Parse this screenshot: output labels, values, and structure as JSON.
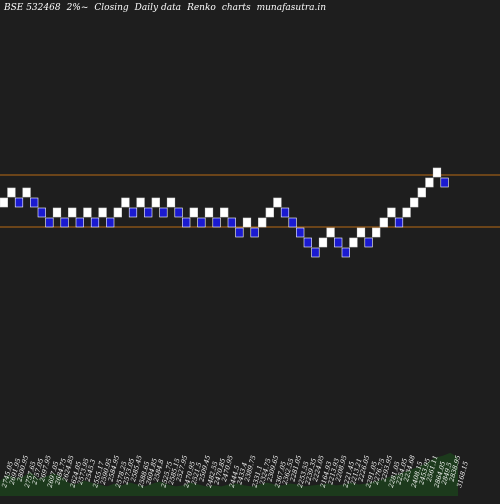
{
  "header": {
    "symbol": "BSE 532468",
    "box_size": "2%~",
    "basis": "Closing",
    "frequency": "Daily data",
    "chart_kind": "Renko",
    "word_charts": "charts",
    "site": "munafasutra.in"
  },
  "chart_data": {
    "type": "renko",
    "colors": {
      "background": "#1e1e1e",
      "up": "#ffffff",
      "down": "#1a1ad0",
      "reference_line": "#b86a14",
      "volume": "#1c3a1c"
    },
    "bricks": [
      {
        "dir": "up",
        "level": 7
      },
      {
        "dir": "up",
        "level": 8
      },
      {
        "dir": "down",
        "level": 7
      },
      {
        "dir": "up",
        "level": 8
      },
      {
        "dir": "down",
        "level": 7
      },
      {
        "dir": "down",
        "level": 6
      },
      {
        "dir": "down",
        "level": 5
      },
      {
        "dir": "up",
        "level": 6
      },
      {
        "dir": "down",
        "level": 5
      },
      {
        "dir": "up",
        "level": 6
      },
      {
        "dir": "down",
        "level": 5
      },
      {
        "dir": "up",
        "level": 6
      },
      {
        "dir": "down",
        "level": 5
      },
      {
        "dir": "up",
        "level": 6
      },
      {
        "dir": "down",
        "level": 5
      },
      {
        "dir": "up",
        "level": 6
      },
      {
        "dir": "up",
        "level": 7
      },
      {
        "dir": "down",
        "level": 6
      },
      {
        "dir": "up",
        "level": 7
      },
      {
        "dir": "down",
        "level": 6
      },
      {
        "dir": "up",
        "level": 7
      },
      {
        "dir": "down",
        "level": 6
      },
      {
        "dir": "up",
        "level": 7
      },
      {
        "dir": "down",
        "level": 6
      },
      {
        "dir": "down",
        "level": 5
      },
      {
        "dir": "up",
        "level": 6
      },
      {
        "dir": "down",
        "level": 5
      },
      {
        "dir": "up",
        "level": 6
      },
      {
        "dir": "down",
        "level": 5
      },
      {
        "dir": "up",
        "level": 6
      },
      {
        "dir": "down",
        "level": 5
      },
      {
        "dir": "down",
        "level": 4
      },
      {
        "dir": "up",
        "level": 5
      },
      {
        "dir": "down",
        "level": 4
      },
      {
        "dir": "up",
        "level": 5
      },
      {
        "dir": "up",
        "level": 6
      },
      {
        "dir": "up",
        "level": 7
      },
      {
        "dir": "down",
        "level": 6
      },
      {
        "dir": "down",
        "level": 5
      },
      {
        "dir": "down",
        "level": 4
      },
      {
        "dir": "down",
        "level": 3
      },
      {
        "dir": "down",
        "level": 2
      },
      {
        "dir": "up",
        "level": 3
      },
      {
        "dir": "up",
        "level": 4
      },
      {
        "dir": "down",
        "level": 3
      },
      {
        "dir": "down",
        "level": 2
      },
      {
        "dir": "up",
        "level": 3
      },
      {
        "dir": "up",
        "level": 4
      },
      {
        "dir": "down",
        "level": 3
      },
      {
        "dir": "up",
        "level": 4
      },
      {
        "dir": "up",
        "level": 5
      },
      {
        "dir": "up",
        "level": 6
      },
      {
        "dir": "down",
        "level": 5
      },
      {
        "dir": "up",
        "level": 6
      },
      {
        "dir": "up",
        "level": 7
      },
      {
        "dir": "up",
        "level": 8
      },
      {
        "dir": "up",
        "level": 9
      },
      {
        "dir": "up",
        "level": 10
      },
      {
        "dir": "down",
        "level": 9
      }
    ],
    "reference_levels": [
      9.3,
      4.1
    ],
    "price_labels": [
      "2745.05",
      "2691.95",
      "2800.95",
      "2757.65",
      "2757.05",
      "2697.95",
      "2697.05",
      "2684.75",
      "2624.85",
      "2624.05",
      "2573.95",
      "2545.3",
      "2555.17",
      "2590.95",
      "2584.95",
      "2578.25",
      "2573.05",
      "2585.45",
      "2588.65",
      "2604.85",
      "2584.8",
      "2525.75",
      "2585.15",
      "2527.95",
      "2470.95",
      "2521.5",
      "2509.45",
      "2482.55",
      "2470.85",
      "2470.95",
      "2444.5",
      "2433.4",
      "2389.75",
      "2331.1",
      "2324.75",
      "2309.65",
      "2367.05",
      "2362.55",
      "2281.05",
      "2253.55",
      "2239.35",
      "2224.05",
      "2164.93",
      "2213.93",
      "2208.95",
      "2221.45",
      "2213.21",
      "2226.05",
      "2291.05",
      "2276.75",
      "2293.95",
      "2281.05",
      "2254.05",
      "2234.68",
      "2408.15",
      "2453.95",
      "2561.11",
      "2864.05",
      "2849.5",
      "2838.95",
      "3168.15"
    ],
    "volume": [
      0.16,
      0.22,
      0.19,
      0.2,
      0.25,
      0.18,
      0.2,
      0.24,
      0.2,
      0.14,
      0.12,
      0.16,
      0.14,
      0.12,
      0.1,
      0.13,
      0.11,
      0.14,
      0.12,
      0.1,
      0.13,
      0.15,
      0.12,
      0.1,
      0.11,
      0.14,
      0.12,
      0.1,
      0.11,
      0.1,
      0.12,
      0.13,
      0.11,
      0.1,
      0.12,
      0.14,
      0.12,
      0.11,
      0.13,
      0.12,
      0.1,
      0.11,
      0.12,
      0.13,
      0.11,
      0.12,
      0.14,
      0.12,
      0.13,
      0.15,
      0.17,
      0.2,
      0.22,
      0.25,
      0.28,
      0.31,
      0.35,
      0.4,
      0.42,
      0.45,
      0.4
    ]
  }
}
